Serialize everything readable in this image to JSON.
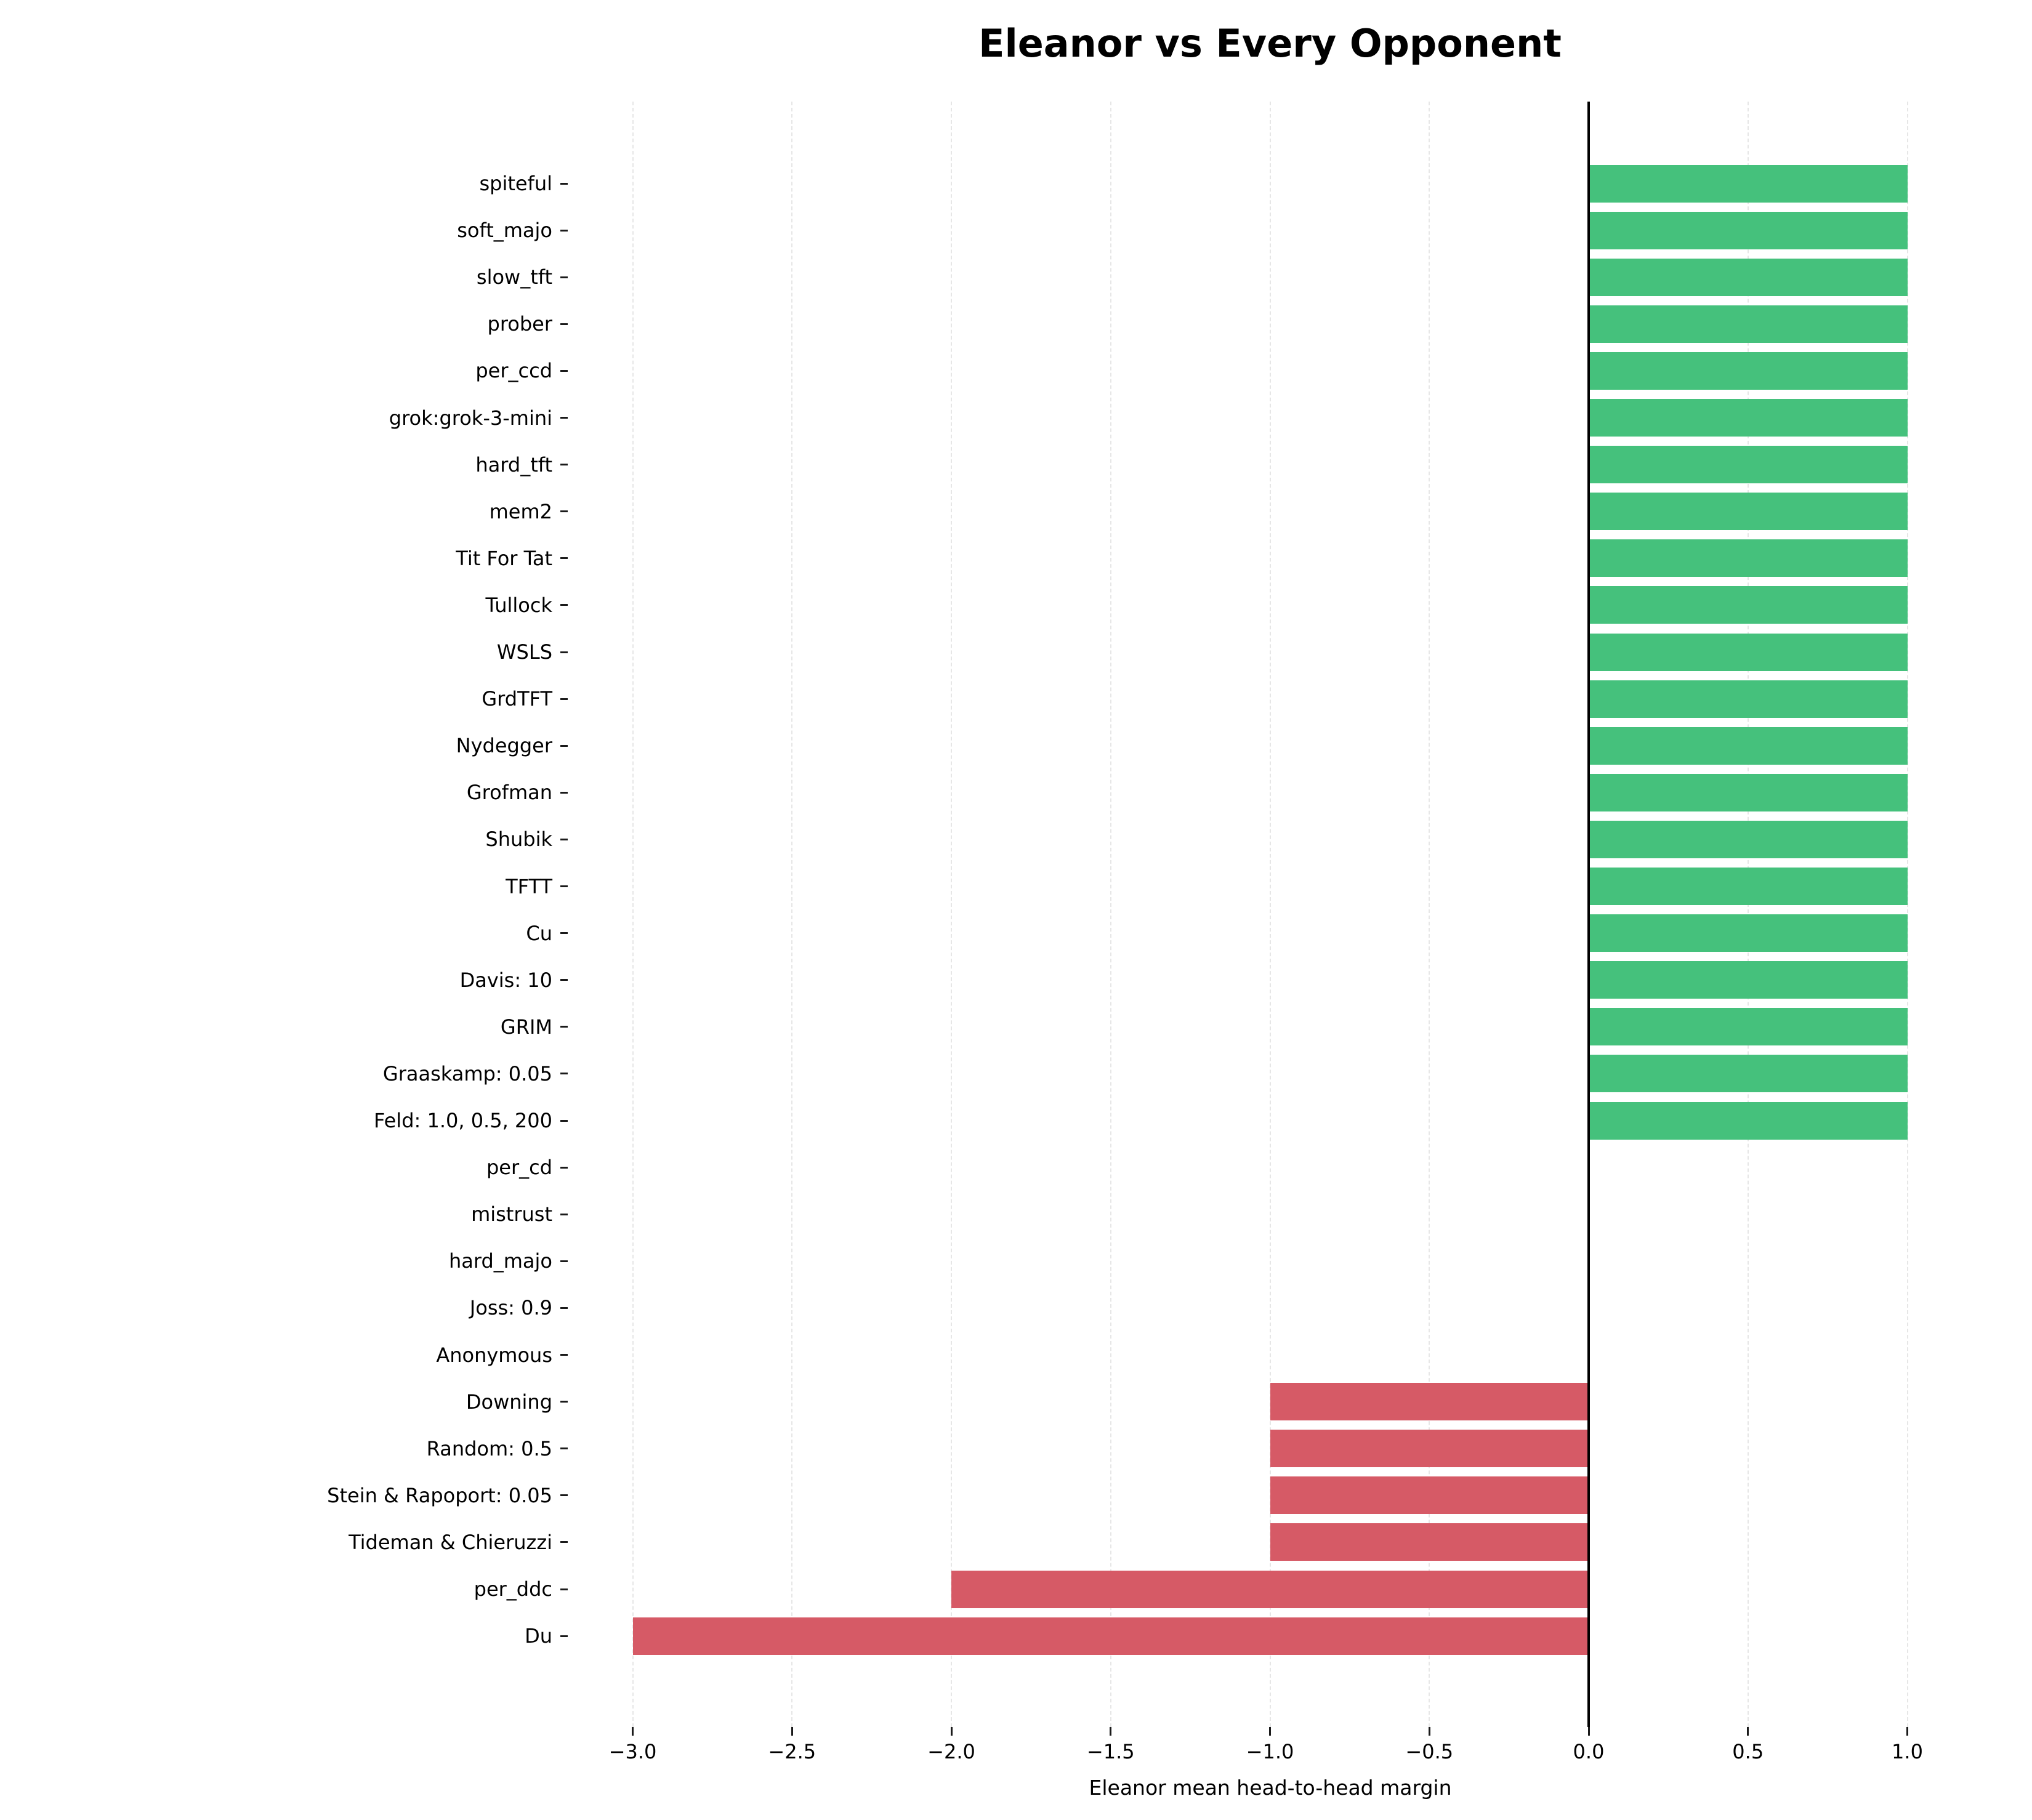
{
  "title": "Eleanor vs Every Opponent",
  "chart_data": {
    "type": "bar",
    "orientation": "horizontal",
    "title": "Eleanor vs Every Opponent",
    "xlabel": "Eleanor mean head-to-head margin",
    "ylabel": "",
    "categories": [
      "spiteful",
      "soft_majo",
      "slow_tft",
      "prober",
      "per_ccd",
      "grok:grok-3-mini",
      "hard_tft",
      "mem2",
      "Tit For Tat",
      "Tullock",
      "WSLS",
      "GrdTFT",
      "Nydegger",
      "Grofman",
      "Shubik",
      "TFTT",
      "Cu",
      "Davis: 10",
      "GRIM",
      "Graaskamp: 0.05",
      "Feld: 1.0, 0.5, 200",
      "per_cd",
      "mistrust",
      "hard_majo",
      "Joss: 0.9",
      "Anonymous",
      "Downing",
      "Random: 0.5",
      "Stein & Rapoport: 0.05",
      "Tideman & Chieruzzi",
      "per_ddc",
      "Du"
    ],
    "values": [
      1.0,
      1.0,
      1.0,
      1.0,
      1.0,
      1.0,
      1.0,
      1.0,
      1.0,
      1.0,
      1.0,
      1.0,
      1.0,
      1.0,
      1.0,
      1.0,
      1.0,
      1.0,
      1.0,
      1.0,
      1.0,
      0.0,
      0.0,
      0.0,
      0.0,
      0.0,
      -1.0,
      -1.0,
      -1.0,
      -1.0,
      -2.0,
      -3.0
    ],
    "xlim": [
      -3.2,
      1.2
    ],
    "xticks": [
      -3.0,
      -2.5,
      -2.0,
      -1.5,
      -1.0,
      -0.5,
      0.0,
      0.5,
      1.0
    ],
    "xtick_labels": [
      "−3.0",
      "−2.5",
      "−2.0",
      "−1.5",
      "−1.0",
      "−0.5",
      "0.0",
      "0.5",
      "1.0"
    ],
    "grid": "x-dashed",
    "legend": "none",
    "zero_reference_line": 0.0,
    "colors": {
      "positive": "#45c17c",
      "negative": "#d65a66",
      "zero_line": "#000000",
      "grid": "#e6e6e6",
      "tick": "#1a1a1a",
      "text": "#000000"
    }
  }
}
